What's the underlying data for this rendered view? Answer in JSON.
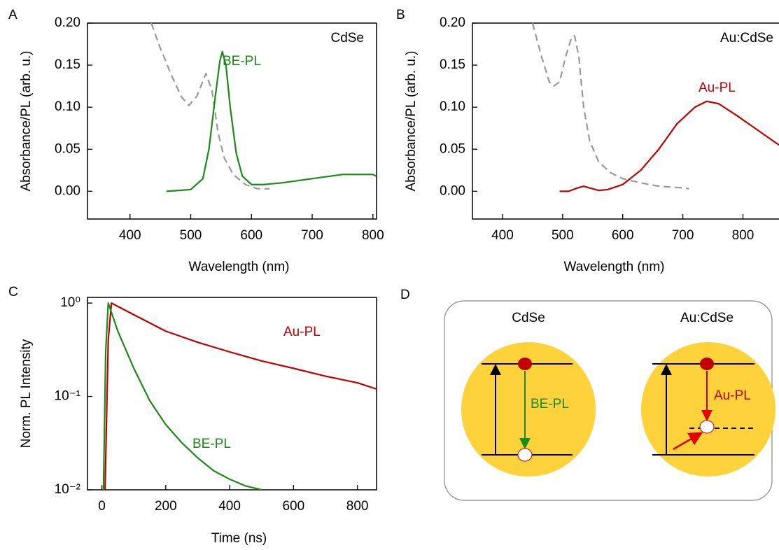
{
  "chart_data": [
    {
      "type": "line",
      "panel": "A",
      "annotation": "CdSe",
      "xlabel": "Wavelength (nm)",
      "ylabel": "Absorbance/PL (arb. u.)",
      "xlim": [
        330,
        806
      ],
      "xticks": [
        400,
        500,
        600,
        700,
        800
      ],
      "ylim": [
        -0.033,
        0.2
      ],
      "yticks": [
        {
          "value": 0,
          "label": "0.00"
        },
        0.05,
        {
          "value": 0.1,
          "label": "0.10"
        },
        0.15,
        {
          "value": 0.2,
          "label": "0.20"
        }
      ],
      "series": [
        {
          "color": "#999999",
          "line_style": "dashed",
          "x": [
            435,
            450,
            470,
            485,
            497,
            510,
            525,
            535,
            545,
            555,
            570,
            590,
            610,
            630
          ],
          "values": [
            0.2,
            0.17,
            0.135,
            0.112,
            0.102,
            0.113,
            0.14,
            0.12,
            0.07,
            0.04,
            0.02,
            0.008,
            0.003,
            0.003
          ]
        },
        {
          "name": "BE-PL",
          "color": "#1a8a1a",
          "line_style": "solid",
          "x": [
            460,
            500,
            520,
            530,
            540,
            548,
            552,
            558,
            565,
            575,
            585,
            600,
            620,
            650,
            700,
            750,
            800,
            805
          ],
          "values": [
            0,
            0.002,
            0.015,
            0.05,
            0.11,
            0.155,
            0.166,
            0.15,
            0.1,
            0.045,
            0.018,
            0.008,
            0.008,
            0.01,
            0.015,
            0.02,
            0.02,
            0.018
          ]
        }
      ]
    },
    {
      "type": "line",
      "panel": "B",
      "annotation": "Au:CdSe",
      "xlabel": "Wavelength (nm)",
      "ylabel": "Absorbance/PL (arb. u.)",
      "xlim": [
        350,
        860
      ],
      "xticks": [
        400,
        500,
        600,
        700,
        800
      ],
      "ylim": [
        -0.033,
        0.2
      ],
      "yticks": [
        {
          "value": 0,
          "label": "0.00"
        },
        0.05,
        {
          "value": 0.1,
          "label": "0.10"
        },
        0.15,
        {
          "value": 0.2,
          "label": "0.20"
        }
      ],
      "series": [
        {
          "color": "#999999",
          "line_style": "dashed",
          "x": [
            450,
            465,
            478,
            485,
            495,
            505,
            515,
            520,
            527,
            535,
            545,
            560,
            580,
            600,
            630,
            660,
            700,
            710
          ],
          "values": [
            0.2,
            0.16,
            0.13,
            0.125,
            0.13,
            0.16,
            0.183,
            0.185,
            0.16,
            0.1,
            0.06,
            0.035,
            0.022,
            0.015,
            0.01,
            0.006,
            0.004,
            0.003
          ]
        },
        {
          "name": "Au-PL",
          "color": "#c00000",
          "line_style": "solid",
          "x": [
            495,
            510,
            525,
            535,
            545,
            560,
            575,
            600,
            630,
            660,
            690,
            720,
            740,
            760,
            790,
            820,
            850,
            860
          ],
          "values": [
            0,
            0,
            0.004,
            0.006,
            0.004,
            0.001,
            0.002,
            0.008,
            0.025,
            0.05,
            0.08,
            0.1,
            0.107,
            0.104,
            0.09,
            0.075,
            0.06,
            0.055
          ]
        }
      ]
    },
    {
      "type": "line",
      "panel": "C",
      "xlabel": "Time (ns)",
      "ylabel": "Norm. PL Intensity",
      "yscale": "log",
      "xlim": [
        -45,
        860
      ],
      "xticks": [
        0,
        200,
        400,
        600,
        800
      ],
      "ylim": [
        0.01,
        1.15
      ],
      "yticks": [
        {
          "value": 0.01,
          "label": "10⁻²"
        },
        {
          "value": 0.1,
          "label": "10⁻¹"
        },
        {
          "value": 1,
          "label": "10⁰"
        }
      ],
      "series": [
        {
          "name": "Au-PL",
          "color": "#c00000",
          "line_style": "solid",
          "x": [
            10,
            20,
            30,
            100,
            200,
            300,
            400,
            500,
            600,
            700,
            800,
            860
          ],
          "values": [
            0.01,
            0.4,
            1,
            0.75,
            0.5,
            0.38,
            0.3,
            0.24,
            0.2,
            0.165,
            0.14,
            0.12
          ]
        },
        {
          "name": "BE-PL",
          "color": "#1a8a1a",
          "line_style": "solid",
          "x": [
            5,
            12,
            20,
            50,
            100,
            150,
            200,
            250,
            300,
            350,
            400,
            450,
            500
          ],
          "values": [
            0.01,
            0.3,
            1,
            0.5,
            0.2,
            0.09,
            0.05,
            0.032,
            0.022,
            0.016,
            0.013,
            0.011,
            0.01
          ]
        }
      ]
    }
  ],
  "diagram": {
    "panel": "D",
    "left_title": "CdSe",
    "right_title": "Au:CdSe",
    "left_label": "BE-PL",
    "right_label": "Au-PL"
  }
}
